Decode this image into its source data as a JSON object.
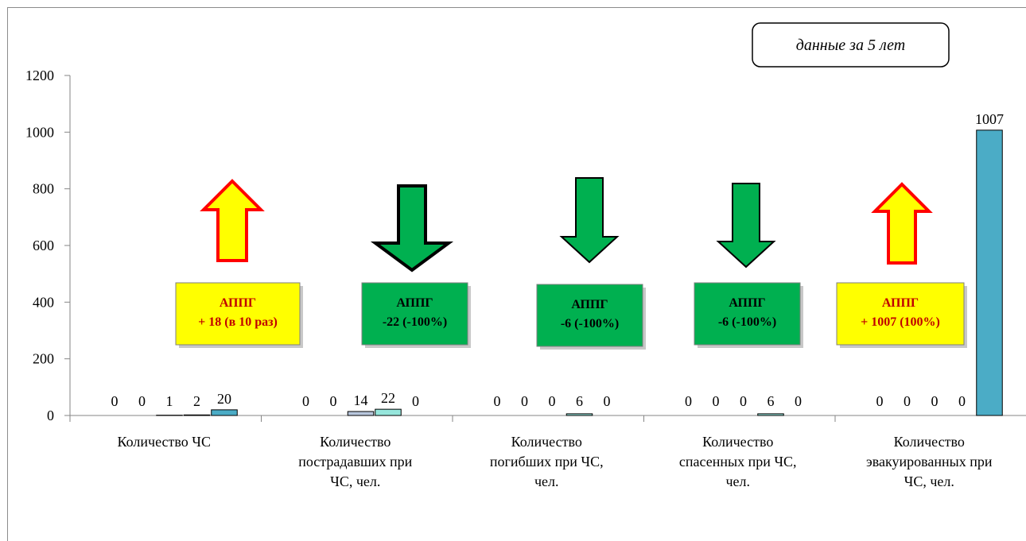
{
  "chart_data": {
    "type": "bar",
    "title": "",
    "xlabel": "",
    "ylabel": "",
    "ylim": [
      0,
      1200
    ],
    "yticks": [
      0,
      200,
      400,
      600,
      800,
      1000,
      1200
    ],
    "grid": false,
    "legend": "none",
    "note": "данные за 5 лет",
    "categories": [
      "Количество ЧС",
      "Количество пострадавших при ЧС, чел.",
      "Количество погибших при ЧС, чел.",
      "Количество спасенных при ЧС, чел.",
      "Количество эвакуированных при ЧС, чел."
    ],
    "category_lines": [
      [
        "Количество ЧС"
      ],
      [
        "Количество",
        "пострадавших при",
        "ЧС, чел."
      ],
      [
        "Количество",
        "погибших при ЧС,",
        "чел."
      ],
      [
        "Количество",
        "спасенных при ЧС,",
        "чел."
      ],
      [
        "Количество",
        "эвакуированных при",
        "ЧС, чел."
      ]
    ],
    "series": [
      {
        "values": [
          0,
          0,
          0,
          0,
          0
        ],
        "color": "#4f81bd"
      },
      {
        "values": [
          0,
          0,
          0,
          0,
          0
        ],
        "color": "#c0504d"
      },
      {
        "values": [
          1,
          14,
          0,
          0,
          0
        ],
        "color": "#b8c6dc"
      },
      {
        "values": [
          2,
          22,
          6,
          6,
          0
        ],
        "color": "#96e6dc"
      },
      {
        "values": [
          20,
          0,
          0,
          0,
          1007
        ],
        "color": "#4bacc6"
      }
    ],
    "data_labels": [
      [
        "0",
        "0",
        "1",
        "2",
        "20"
      ],
      [
        "0",
        "0",
        "14",
        "22",
        "0"
      ],
      [
        "0",
        "0",
        "0",
        "6",
        "0"
      ],
      [
        "0",
        "0",
        "0",
        "6",
        "0"
      ],
      [
        "0",
        "0",
        "0",
        "0",
        "1007"
      ]
    ],
    "callouts": [
      {
        "lines": [
          "АППГ",
          "+ 18 (в 10 раз)"
        ],
        "fill": "#ffff00",
        "text_color": "#c00000",
        "direction": "up",
        "arrow_fill": "#ffff00",
        "arrow_stroke": "#ff0000"
      },
      {
        "lines": [
          "АППГ",
          "-22 (-100%)"
        ],
        "fill": "#00b050",
        "text_color": "#000000",
        "direction": "down",
        "arrow_fill": "#00b050",
        "arrow_stroke": "#000000"
      },
      {
        "lines": [
          "АППГ",
          "-6 (-100%)"
        ],
        "fill": "#00b050",
        "text_color": "#000000",
        "direction": "down",
        "arrow_fill": "#00b050",
        "arrow_stroke": "#000000"
      },
      {
        "lines": [
          "АППГ",
          "-6 (-100%)"
        ],
        "fill": "#00b050",
        "text_color": "#000000",
        "direction": "down",
        "arrow_fill": "#00b050",
        "arrow_stroke": "#000000"
      },
      {
        "lines": [
          "АППГ",
          "+ 1007 (100%)"
        ],
        "fill": "#ffff00",
        "text_color": "#c00000",
        "direction": "up",
        "arrow_fill": "#ffff00",
        "arrow_stroke": "#ff0000"
      }
    ]
  }
}
